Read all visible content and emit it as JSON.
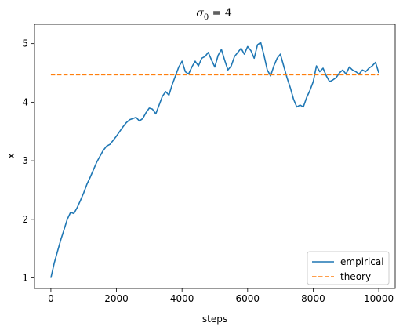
{
  "chart_data": {
    "type": "line",
    "title_main": "σ",
    "title_sub": "0",
    "title_rest": " = 4",
    "xlabel": "steps",
    "ylabel": "x",
    "xlim": [
      -500,
      10500
    ],
    "ylim": [
      0.82,
      5.33
    ],
    "xticks": [
      0,
      2000,
      4000,
      6000,
      8000,
      10000
    ],
    "xtick_labels": [
      "0",
      "2000",
      "4000",
      "6000",
      "8000",
      "10000"
    ],
    "yticks": [
      1,
      2,
      3,
      4,
      5
    ],
    "ytick_labels": [
      "1",
      "2",
      "3",
      "4",
      "5"
    ],
    "grid": false,
    "legend_position": "lower right",
    "series": [
      {
        "name": "empirical",
        "style": "solid",
        "color": "#1f77b4",
        "x": [
          0,
          100,
          200,
          300,
          400,
          500,
          600,
          700,
          800,
          900,
          1000,
          1100,
          1200,
          1300,
          1400,
          1500,
          1600,
          1700,
          1800,
          1900,
          2000,
          2100,
          2200,
          2300,
          2400,
          2500,
          2600,
          2700,
          2800,
          2900,
          3000,
          3100,
          3200,
          3300,
          3400,
          3500,
          3600,
          3700,
          3800,
          3900,
          4000,
          4100,
          4200,
          4300,
          4400,
          4500,
          4600,
          4700,
          4800,
          4900,
          5000,
          5100,
          5200,
          5300,
          5400,
          5500,
          5600,
          5700,
          5800,
          5900,
          6000,
          6100,
          6200,
          6300,
          6400,
          6500,
          6600,
          6700,
          6800,
          6900,
          7000,
          7100,
          7200,
          7300,
          7400,
          7500,
          7600,
          7700,
          7800,
          7900,
          8000,
          8100,
          8200,
          8300,
          8400,
          8500,
          8600,
          8700,
          8800,
          8900,
          9000,
          9100,
          9200,
          9300,
          9400,
          9500,
          9600,
          9700,
          9800,
          9900,
          10000
        ],
        "y": [
          1.0,
          1.25,
          1.45,
          1.65,
          1.82,
          2.0,
          2.12,
          2.1,
          2.2,
          2.32,
          2.45,
          2.6,
          2.72,
          2.85,
          2.98,
          3.08,
          3.18,
          3.25,
          3.28,
          3.35,
          3.42,
          3.5,
          3.58,
          3.65,
          3.7,
          3.72,
          3.74,
          3.68,
          3.72,
          3.82,
          3.9,
          3.88,
          3.8,
          3.95,
          4.1,
          4.18,
          4.12,
          4.3,
          4.45,
          4.6,
          4.7,
          4.52,
          4.48,
          4.6,
          4.7,
          4.62,
          4.75,
          4.78,
          4.85,
          4.72,
          4.6,
          4.8,
          4.9,
          4.72,
          4.55,
          4.62,
          4.78,
          4.85,
          4.92,
          4.82,
          4.95,
          4.88,
          4.75,
          4.98,
          5.02,
          4.8,
          4.55,
          4.45,
          4.62,
          4.75,
          4.82,
          4.62,
          4.42,
          4.25,
          4.05,
          3.92,
          3.95,
          3.92,
          4.08,
          4.2,
          4.35,
          4.62,
          4.52,
          4.58,
          4.45,
          4.35,
          4.38,
          4.42,
          4.5,
          4.55,
          4.48,
          4.6,
          4.55,
          4.52,
          4.48,
          4.55,
          4.52,
          4.58,
          4.62,
          4.68,
          4.5
        ]
      },
      {
        "name": "theory",
        "style": "dashed",
        "color": "#ff7f0e",
        "x": [
          0,
          10000
        ],
        "y": [
          4.47,
          4.47
        ]
      }
    ]
  },
  "colors": {
    "axes": "#000000",
    "background": "#ffffff",
    "empirical": "#1f77b4",
    "theory": "#ff7f0e",
    "legend_border": "#cccccc"
  }
}
